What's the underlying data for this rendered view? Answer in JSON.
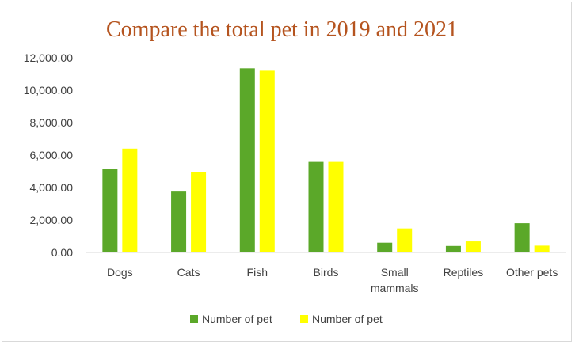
{
  "chart_data": {
    "type": "bar",
    "title": "Compare the total pet in 2019 and 2021",
    "xlabel": "",
    "ylabel": "",
    "categories": [
      "Dogs",
      "Cats",
      "Fish",
      "Birds",
      "Small mammals",
      "Reptiles",
      "Other pets"
    ],
    "category_lines": [
      [
        "Dogs"
      ],
      [
        "Cats"
      ],
      [
        "Fish"
      ],
      [
        "Birds"
      ],
      [
        "Small",
        "mammals"
      ],
      [
        "Reptiles"
      ],
      [
        "Other pets"
      ]
    ],
    "series": [
      {
        "name": "Number of pet",
        "color": "#5ba829",
        "values": [
          5150,
          3750,
          11350,
          5580,
          600,
          400,
          1800
        ]
      },
      {
        "name": "Number of pet",
        "color": "#ffff00",
        "values": [
          6400,
          4950,
          11200,
          5580,
          1480,
          680,
          420
        ]
      }
    ],
    "ylim": [
      0,
      12000
    ],
    "yticks": [
      0,
      2000,
      4000,
      6000,
      8000,
      10000,
      12000
    ],
    "ytick_labels": [
      "0.00",
      "2,000.00",
      "4,000.00",
      "6,000.00",
      "8,000.00",
      "10,000.00",
      "12,000.00"
    ],
    "grid": false,
    "legend_position": "bottom",
    "colors": {
      "title": "#b5541f",
      "axis": "#d9d9d9"
    }
  }
}
